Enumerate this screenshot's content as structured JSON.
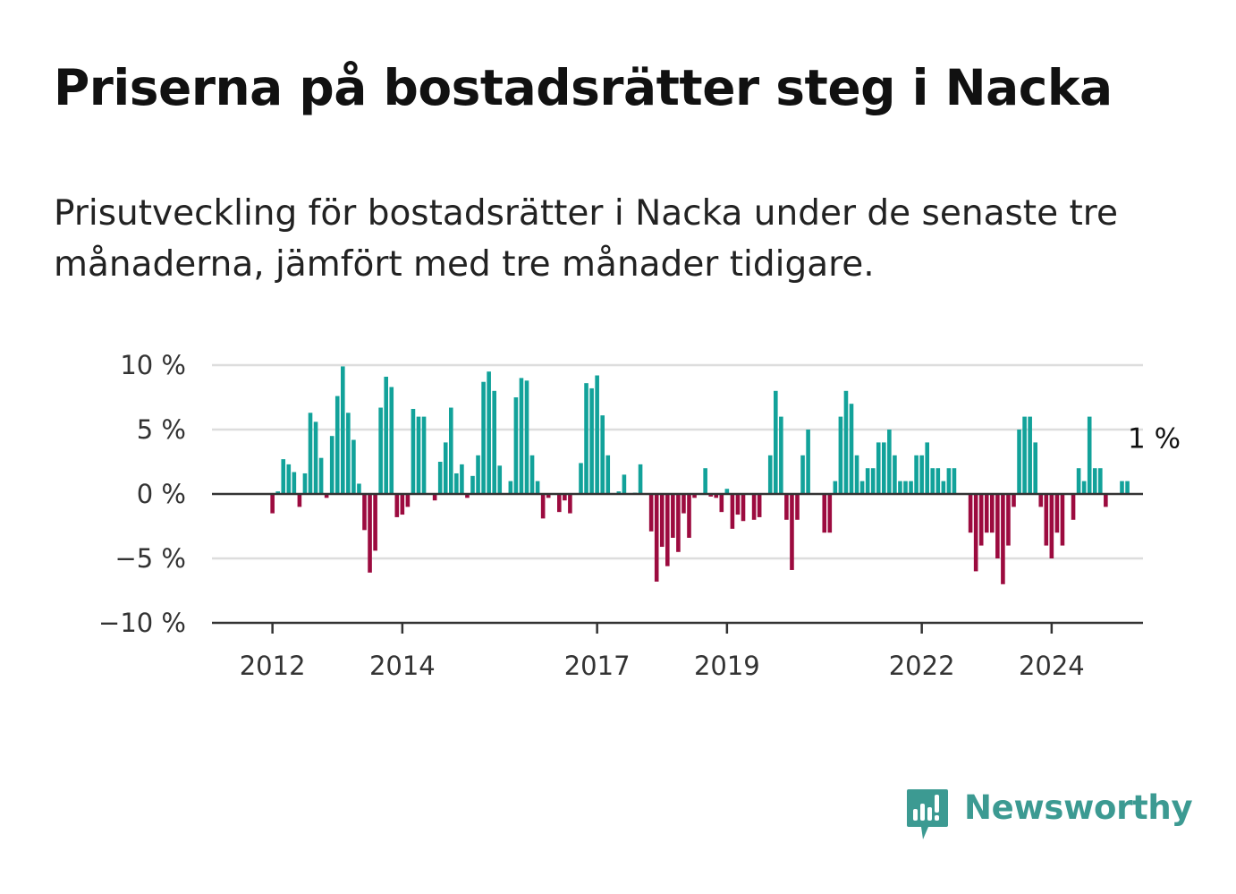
{
  "header": {
    "title": "Priserna på bostadsrätter steg i Nacka",
    "subtitle": "Prisutveckling för bostadsrätter i Nacka under de senaste tre månaderna, jämfört med tre månader tidigare."
  },
  "brand": {
    "name": "Newsworthy",
    "icon": "newsworthy-logo-icon",
    "color": "#3c9a92"
  },
  "colors": {
    "positive": "#12a29a",
    "negative": "#9c0b3f",
    "grid": "#dddddd",
    "axis": "#333333"
  },
  "chart_data": {
    "type": "bar",
    "title": "",
    "xlabel": "",
    "ylabel": "",
    "unit": "%",
    "ylim": [
      -10,
      10
    ],
    "y_ticks": [
      "10 %",
      "5 %",
      "0 %",
      "−5 %",
      "−10 %"
    ],
    "y_tick_values": [
      10,
      5,
      0,
      -5,
      -10
    ],
    "x_ticks": [
      "2012",
      "2014",
      "2017",
      "2019",
      "2022",
      "2024"
    ],
    "x_tick_dates": [
      "2012-01",
      "2014-01",
      "2017-01",
      "2019-01",
      "2022-01",
      "2024-01"
    ],
    "start": "2011-10",
    "frequency": "monthly",
    "grid": true,
    "legend": "none",
    "last_value_label": "1 %",
    "values": [
      0,
      0,
      0,
      -1.5,
      0.2,
      2.7,
      2.3,
      1.7,
      -1,
      1.6,
      6.3,
      5.6,
      2.8,
      -0.3,
      4.5,
      7.6,
      9.9,
      6.3,
      4.2,
      0.8,
      -2.8,
      -6.1,
      -4.4,
      6.7,
      9.1,
      8.3,
      -1.8,
      -1.6,
      -1,
      6.6,
      6,
      6,
      0,
      -0.5,
      2.5,
      4,
      6.7,
      1.6,
      2.3,
      -0.3,
      1.4,
      3,
      8.7,
      9.5,
      8,
      2.2,
      0,
      1,
      7.5,
      9,
      8.8,
      3,
      1,
      -1.9,
      -0.3,
      0,
      -1.4,
      -0.5,
      -1.5,
      0,
      2.4,
      8.6,
      8.2,
      9.2,
      6.1,
      3,
      0,
      0.2,
      1.5,
      0,
      0.1,
      2.3,
      0,
      -2.9,
      -6.8,
      -4.1,
      -5.6,
      -3.4,
      -4.5,
      -1.5,
      -3.4,
      -0.3,
      0,
      2,
      -0.2,
      -0.3,
      -1.4,
      0.4,
      -2.7,
      -1.6,
      -2.1,
      0,
      -2,
      -1.8,
      0,
      3,
      8,
      6,
      -2,
      -5.9,
      -2,
      3,
      5,
      0,
      0,
      -3,
      -3,
      1,
      6,
      8,
      7,
      3,
      1,
      2,
      2,
      4,
      4,
      5,
      3,
      1,
      1,
      1,
      3,
      3,
      4,
      2,
      2,
      1,
      2,
      2,
      0,
      0,
      -3,
      -6,
      -4,
      -3,
      -3,
      -5,
      -7,
      -4,
      -1,
      5,
      6,
      6,
      4,
      -1,
      -4,
      -5,
      -3,
      -4,
      0,
      -2,
      2,
      1,
      6,
      2,
      2,
      -1,
      0,
      0,
      1,
      1
    ]
  }
}
